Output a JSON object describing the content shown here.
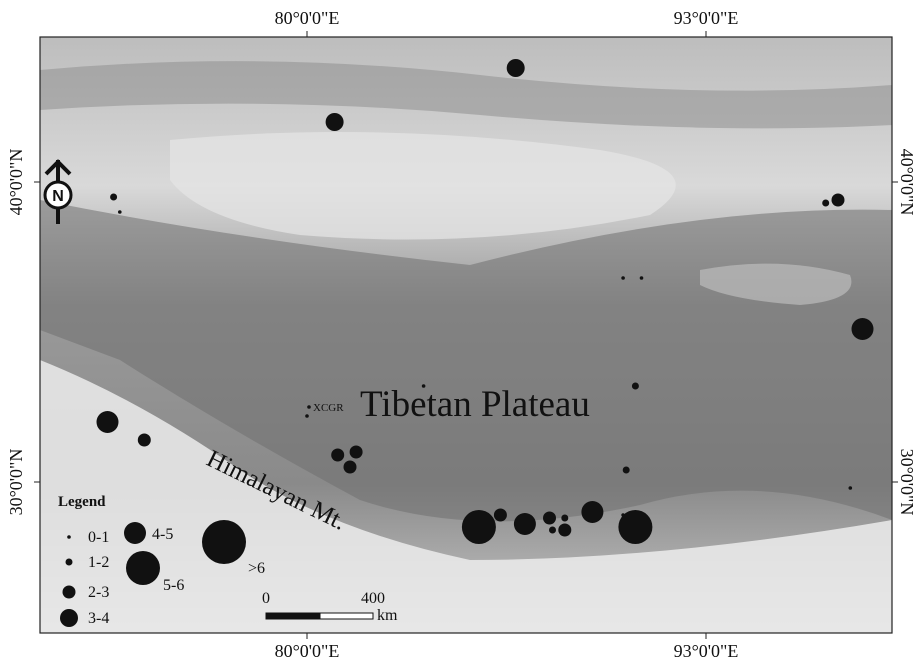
{
  "map": {
    "top_axis": [
      "80°0'0\"E",
      "93°0'0\"E"
    ],
    "bottom_axis": [
      "80°0'0\"E",
      "93°0'0\"E"
    ],
    "left_axis": [
      "40°0'0\"N",
      "30°0'0\"N"
    ],
    "right_axis": [
      "40°0'0\"N",
      "30°0'0\"N"
    ],
    "region_label": "Tibetan Plateau",
    "mountain_label": "Himalayan Mt.",
    "site_label": "XCGR",
    "north_arrow_letter": "N"
  },
  "legend": {
    "title": "Legend",
    "classes": [
      "0-1",
      "1-2",
      "2-3",
      "3-4",
      "4-5",
      "5-6",
      ">6"
    ]
  },
  "scale_bar": {
    "start_label": "0",
    "mid_label": "400",
    "unit_label": "km"
  },
  "points": [
    {
      "lon": 86.8,
      "lat": 43.8,
      "class": 3
    },
    {
      "lon": 80.9,
      "lat": 42.0,
      "class": 3
    },
    {
      "lon": 73.7,
      "lat": 39.5,
      "class": 1
    },
    {
      "lon": 73.9,
      "lat": 39.0,
      "class": 0
    },
    {
      "lon": 90.3,
      "lat": 36.8,
      "class": 0
    },
    {
      "lon": 90.9,
      "lat": 36.8,
      "class": 0
    },
    {
      "lon": 96.9,
      "lat": 39.3,
      "class": 1
    },
    {
      "lon": 97.3,
      "lat": 39.4,
      "class": 2
    },
    {
      "lon": 98.1,
      "lat": 35.1,
      "class": 4
    },
    {
      "lon": 83.8,
      "lat": 33.2,
      "class": 0
    },
    {
      "lon": 90.7,
      "lat": 33.2,
      "class": 1
    },
    {
      "lon": 80.0,
      "lat": 32.2,
      "class": 0
    },
    {
      "lon": 73.5,
      "lat": 32.0,
      "class": 4
    },
    {
      "lon": 74.7,
      "lat": 31.4,
      "class": 2
    },
    {
      "lon": 81.0,
      "lat": 30.9,
      "class": 2
    },
    {
      "lon": 81.6,
      "lat": 31.0,
      "class": 2
    },
    {
      "lon": 81.4,
      "lat": 30.5,
      "class": 2
    },
    {
      "lon": 90.4,
      "lat": 30.4,
      "class": 1
    },
    {
      "lon": 97.7,
      "lat": 29.8,
      "class": 0
    },
    {
      "lon": 85.6,
      "lat": 28.5,
      "class": 5
    },
    {
      "lon": 86.3,
      "lat": 28.9,
      "class": 2
    },
    {
      "lon": 87.1,
      "lat": 28.6,
      "class": 4
    },
    {
      "lon": 87.9,
      "lat": 28.8,
      "class": 2
    },
    {
      "lon": 88.4,
      "lat": 28.8,
      "class": 1
    },
    {
      "lon": 88.0,
      "lat": 28.4,
      "class": 1
    },
    {
      "lon": 88.4,
      "lat": 28.4,
      "class": 2
    },
    {
      "lon": 89.3,
      "lat": 29.0,
      "class": 4
    },
    {
      "lon": 90.3,
      "lat": 28.9,
      "class": 0
    },
    {
      "lon": 90.7,
      "lat": 28.5,
      "class": 5
    }
  ]
}
